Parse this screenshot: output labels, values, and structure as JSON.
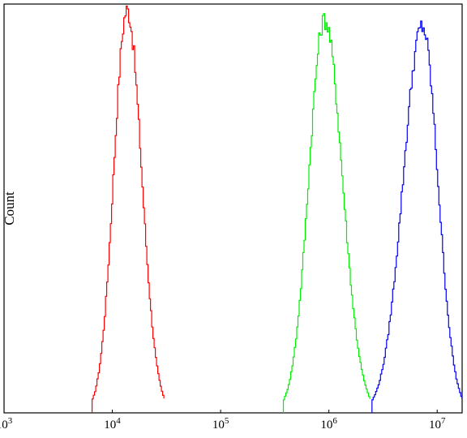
{
  "chart_data": {
    "type": "histogram",
    "xscale": "log",
    "xlim": [
      1000,
      17000000
    ],
    "ylim": [
      0,
      1
    ],
    "xlabel": "",
    "ylabel": "Count",
    "grid": false,
    "legend": "none",
    "x_ticks": [
      {
        "value": 1000,
        "base": "10",
        "exp": "3"
      },
      {
        "value": 10000,
        "base": "10",
        "exp": "4"
      },
      {
        "value": 100000,
        "base": "10",
        "exp": "5"
      },
      {
        "value": 1000000,
        "base": "10",
        "exp": "6"
      },
      {
        "value": 10000000,
        "base": "10",
        "exp": "7"
      }
    ],
    "series": [
      {
        "color": "#ff0000",
        "peak_x": 13500,
        "peak_y": 0.985,
        "x_start": 6500,
        "x_end": 30000
      },
      {
        "color": "#00ee00",
        "peak_x": 900000,
        "peak_y": 0.962,
        "x_start": 380000,
        "x_end": 2400000
      },
      {
        "color": "#0000ee",
        "peak_x": 7200000,
        "peak_y": 0.945,
        "x_start": 2500000,
        "x_end": 17000000
      }
    ]
  }
}
